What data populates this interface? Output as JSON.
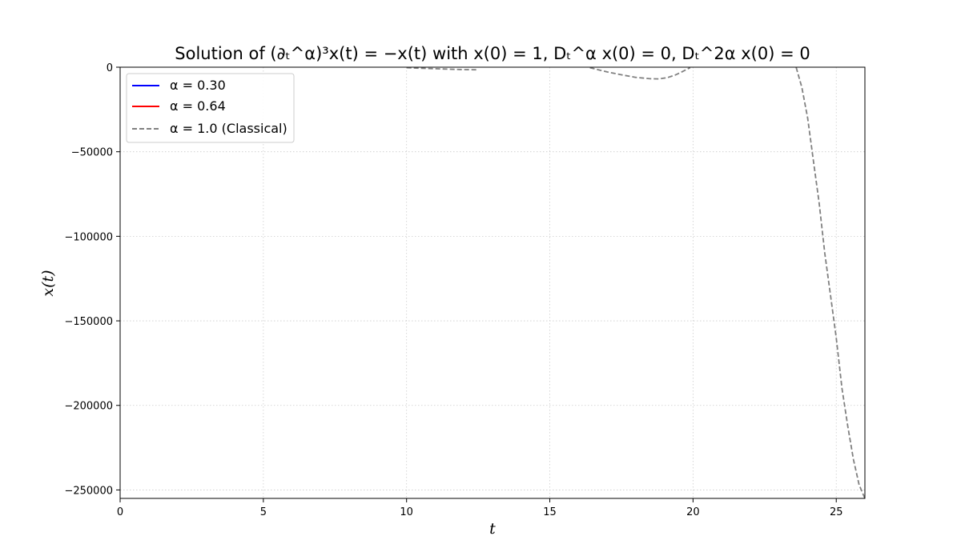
{
  "chart_data": {
    "type": "line",
    "title": "Solution of (∂ₜ^α)³x(t) = −x(t) with x(0) = 1, Dₜ^α x(0) = 0, Dₜ^2α x(0) = 0",
    "xlabel": "t",
    "ylabel": "x(t)",
    "xlim": [
      0,
      26.0
    ],
    "ylim": [
      -255000,
      0
    ],
    "xticks": [
      0,
      5,
      10,
      15,
      20,
      25
    ],
    "yticks": [
      0,
      -50000,
      -100000,
      -150000,
      -200000,
      -250000
    ],
    "grid": true,
    "legend_position": "top-left",
    "series": [
      {
        "name": "α = 0.30",
        "color": "#0000ff",
        "style": "solid",
        "x": [],
        "y": []
      },
      {
        "name": "α = 0.64",
        "color": "#ff0000",
        "style": "solid",
        "x": [],
        "y": []
      },
      {
        "name": "α = 1.0 (Classical)",
        "color": "#808080",
        "style": "dashed",
        "x": [
          10.0,
          10.5,
          11.0,
          11.5,
          12.0,
          12.5,
          16.4,
          17.0,
          17.5,
          18.0,
          18.5,
          18.8,
          19.1,
          19.4,
          19.7,
          19.9,
          23.6,
          23.8,
          24.0,
          24.2,
          24.4,
          24.6,
          24.8,
          25.0,
          25.2,
          25.4,
          25.6,
          25.8,
          26.0
        ],
        "y": [
          -300,
          -600,
          -900,
          -1200,
          -1400,
          -1500,
          -300,
          -2800,
          -4500,
          -6000,
          -6800,
          -6900,
          -6200,
          -4500,
          -2000,
          -300,
          -100,
          -12000,
          -30000,
          -55000,
          -80000,
          -110000,
          -135000,
          -160000,
          -190000,
          -212000,
          -232000,
          -247000,
          -255000
        ]
      }
    ]
  }
}
